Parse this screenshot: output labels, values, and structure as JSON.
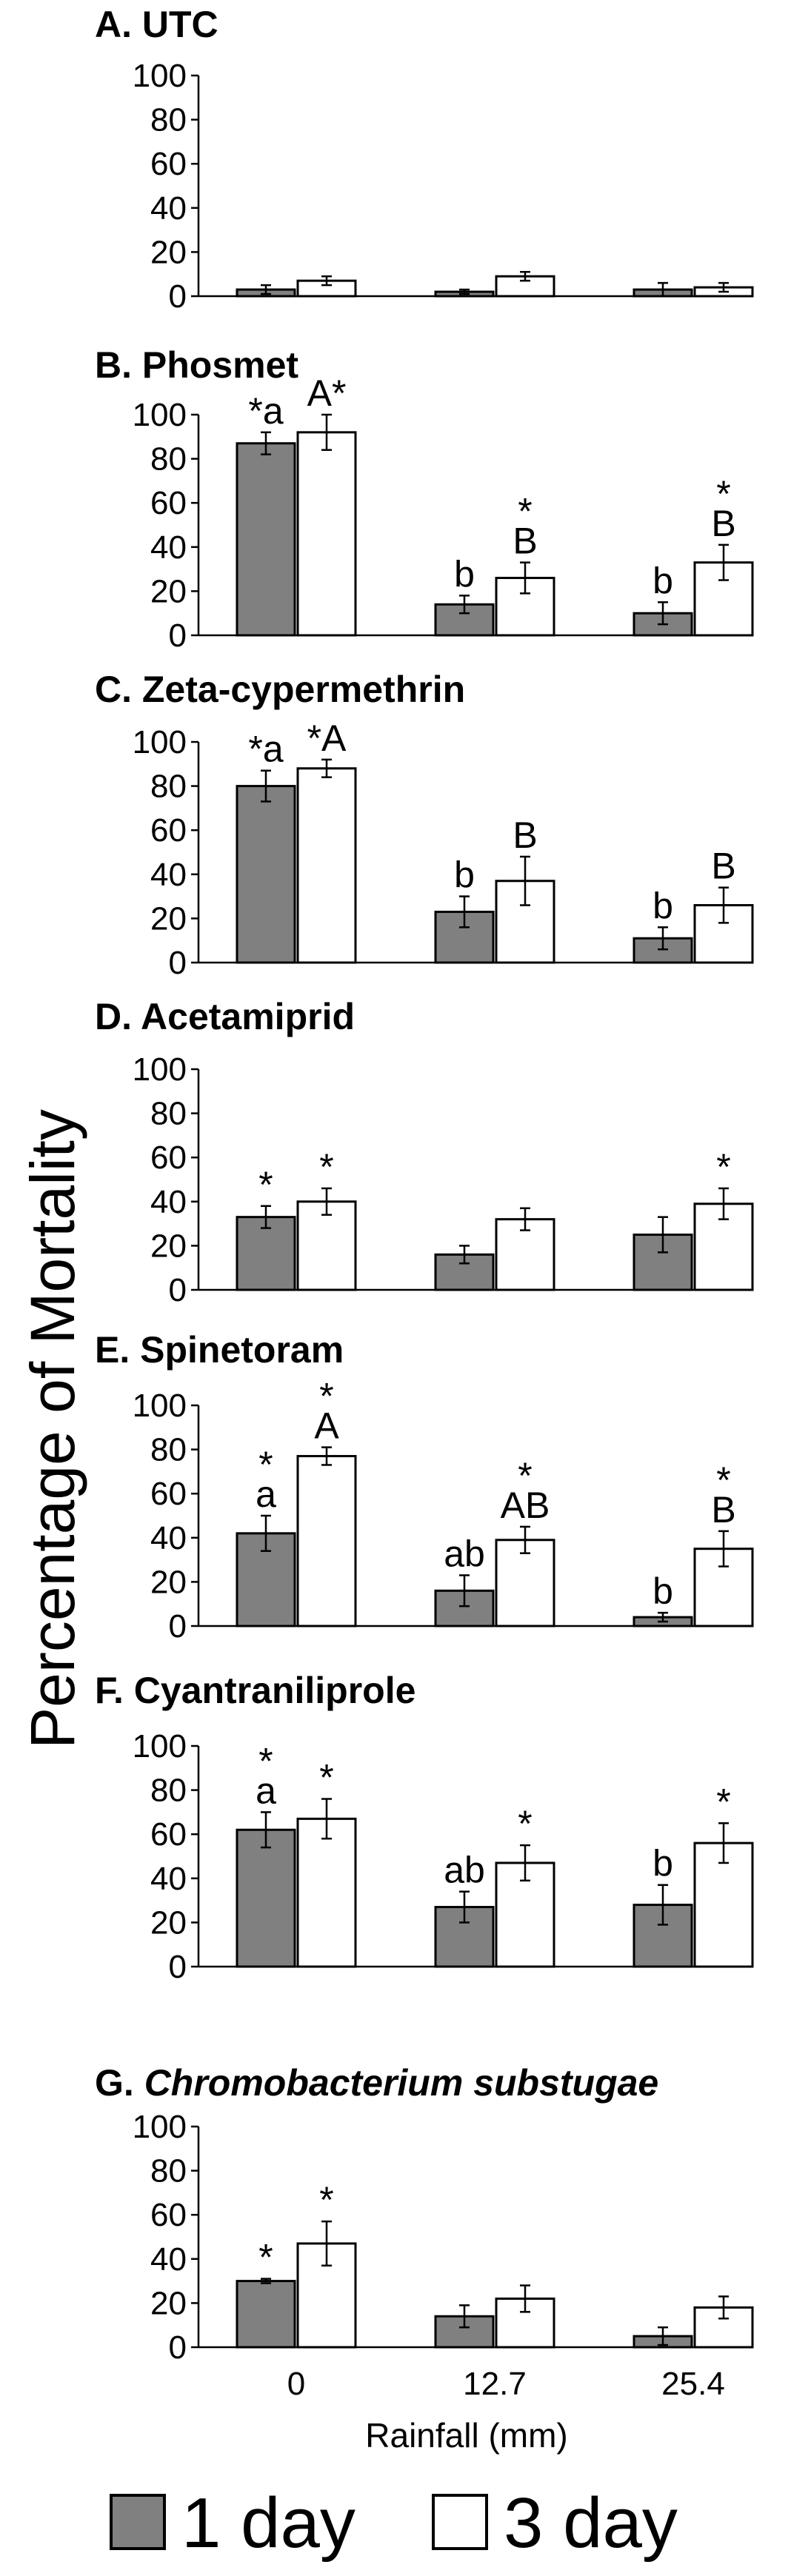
{
  "chart_data": [
    {
      "type": "bar",
      "title": "A. UTC",
      "categories": [
        "0",
        "12.7",
        "25.4"
      ],
      "ylim": [
        0,
        100
      ],
      "yticks": [
        "0",
        "20",
        "40",
        "60",
        "80",
        "100"
      ],
      "series": [
        {
          "name": "1 day",
          "values": [
            3,
            2,
            3
          ],
          "errors": [
            2,
            1,
            3
          ]
        },
        {
          "name": "3 day",
          "values": [
            7,
            9,
            4
          ],
          "errors": [
            2,
            2,
            2
          ]
        }
      ],
      "labels": [
        {
          "series": 0,
          "cat": 0,
          "text": ""
        },
        {
          "series": 1,
          "cat": 0,
          "text": ""
        },
        {
          "series": 0,
          "cat": 1,
          "text": ""
        },
        {
          "series": 1,
          "cat": 1,
          "text": ""
        },
        {
          "series": 0,
          "cat": 2,
          "text": ""
        },
        {
          "series": 1,
          "cat": 2,
          "text": ""
        }
      ]
    },
    {
      "type": "bar",
      "title": "B. Phosmet",
      "categories": [
        "0",
        "12.7",
        "25.4"
      ],
      "ylim": [
        0,
        100
      ],
      "yticks": [
        "0",
        "20",
        "40",
        "60",
        "80",
        "100"
      ],
      "series": [
        {
          "name": "1 day",
          "values": [
            87,
            14,
            10
          ],
          "errors": [
            5,
            4,
            5
          ]
        },
        {
          "name": "3 day",
          "values": [
            92,
            26,
            33
          ],
          "errors": [
            8,
            7,
            8
          ]
        }
      ],
      "labels": [
        {
          "series": 0,
          "cat": 0,
          "text": "*a"
        },
        {
          "series": 1,
          "cat": 0,
          "text": "A*"
        },
        {
          "series": 0,
          "cat": 1,
          "text": "b"
        },
        {
          "series": 1,
          "cat": 1,
          "text": "*"
        },
        {
          "series": 1,
          "cat": 1,
          "text": "B"
        },
        {
          "series": 0,
          "cat": 2,
          "text": "b"
        },
        {
          "series": 1,
          "cat": 2,
          "text": "*"
        },
        {
          "series": 1,
          "cat": 2,
          "text": "B"
        }
      ]
    },
    {
      "type": "bar",
      "title": "C. Zeta-cypermethrin",
      "categories": [
        "0",
        "12.7",
        "25.4"
      ],
      "ylim": [
        0,
        100
      ],
      "yticks": [
        "0",
        "20",
        "40",
        "60",
        "80",
        "100"
      ],
      "series": [
        {
          "name": "1 day",
          "values": [
            80,
            23,
            11
          ],
          "errors": [
            7,
            7,
            5
          ]
        },
        {
          "name": "3 day",
          "values": [
            88,
            37,
            26
          ],
          "errors": [
            4,
            11,
            8
          ]
        }
      ],
      "labels": [
        {
          "series": 0,
          "cat": 0,
          "text": "*a"
        },
        {
          "series": 1,
          "cat": 0,
          "text": "*A"
        },
        {
          "series": 0,
          "cat": 1,
          "text": "b"
        },
        {
          "series": 1,
          "cat": 1,
          "text": "B"
        },
        {
          "series": 0,
          "cat": 2,
          "text": "b"
        },
        {
          "series": 1,
          "cat": 2,
          "text": "B"
        }
      ]
    },
    {
      "type": "bar",
      "title": "D. Acetamiprid",
      "categories": [
        "0",
        "12.7",
        "25.4"
      ],
      "ylim": [
        0,
        100
      ],
      "yticks": [
        "0",
        "20",
        "40",
        "60",
        "80",
        "100"
      ],
      "series": [
        {
          "name": "1 day",
          "values": [
            33,
            16,
            25
          ],
          "errors": [
            5,
            4,
            8
          ]
        },
        {
          "name": "3 day",
          "values": [
            40,
            32,
            39
          ],
          "errors": [
            6,
            5,
            7
          ]
        }
      ],
      "labels": [
        {
          "series": 0,
          "cat": 0,
          "text": "*"
        },
        {
          "series": 1,
          "cat": 0,
          "text": "*"
        },
        {
          "series": 1,
          "cat": 2,
          "text": "*"
        }
      ]
    },
    {
      "type": "bar",
      "title": "E. Spinetoram",
      "categories": [
        "0",
        "12.7",
        "25.4"
      ],
      "ylim": [
        0,
        100
      ],
      "yticks": [
        "0",
        "20",
        "40",
        "60",
        "80",
        "100"
      ],
      "series": [
        {
          "name": "1 day",
          "values": [
            42,
            16,
            4
          ],
          "errors": [
            8,
            7,
            2
          ]
        },
        {
          "name": "3 day",
          "values": [
            77,
            39,
            35
          ],
          "errors": [
            4,
            6,
            8
          ]
        }
      ],
      "labels": [
        {
          "series": 0,
          "cat": 0,
          "text": "*"
        },
        {
          "series": 0,
          "cat": 0,
          "text": "a"
        },
        {
          "series": 1,
          "cat": 0,
          "text": "*"
        },
        {
          "series": 1,
          "cat": 0,
          "text": "A"
        },
        {
          "series": 0,
          "cat": 1,
          "text": "ab"
        },
        {
          "series": 1,
          "cat": 1,
          "text": "*"
        },
        {
          "series": 1,
          "cat": 1,
          "text": "AB"
        },
        {
          "series": 0,
          "cat": 2,
          "text": "b"
        },
        {
          "series": 1,
          "cat": 2,
          "text": "*"
        },
        {
          "series": 1,
          "cat": 2,
          "text": "B"
        }
      ]
    },
    {
      "type": "bar",
      "title": "F. Cyantraniliprole",
      "categories": [
        "0",
        "12.7",
        "25.4"
      ],
      "ylim": [
        0,
        100
      ],
      "yticks": [
        "0",
        "20",
        "40",
        "60",
        "80",
        "100"
      ],
      "series": [
        {
          "name": "1 day",
          "values": [
            62,
            27,
            28
          ],
          "errors": [
            8,
            7,
            9
          ]
        },
        {
          "name": "3 day",
          "values": [
            67,
            47,
            56
          ],
          "errors": [
            9,
            8,
            9
          ]
        }
      ],
      "labels": [
        {
          "series": 0,
          "cat": 0,
          "text": "*"
        },
        {
          "series": 0,
          "cat": 0,
          "text": "a"
        },
        {
          "series": 1,
          "cat": 0,
          "text": "*"
        },
        {
          "series": 0,
          "cat": 1,
          "text": "ab"
        },
        {
          "series": 1,
          "cat": 1,
          "text": "*"
        },
        {
          "series": 0,
          "cat": 2,
          "text": "b"
        },
        {
          "series": 1,
          "cat": 2,
          "text": "*"
        }
      ]
    },
    {
      "type": "bar",
      "title": "G. Chromobacterium substugae",
      "title_prefix": "G. ",
      "title_italic": "Chromobacterium substugae",
      "categories": [
        "0",
        "12.7",
        "25.4"
      ],
      "ylim": [
        0,
        100
      ],
      "yticks": [
        "0",
        "20",
        "40",
        "60",
        "80",
        "100"
      ],
      "series": [
        {
          "name": "1 day",
          "values": [
            30,
            14,
            5
          ],
          "errors": [
            1,
            5,
            4
          ]
        },
        {
          "name": "3 day",
          "values": [
            47,
            22,
            18
          ],
          "errors": [
            10,
            6,
            5
          ]
        }
      ],
      "labels": [
        {
          "series": 0,
          "cat": 0,
          "text": "*"
        },
        {
          "series": 1,
          "cat": 0,
          "text": "*"
        }
      ]
    }
  ],
  "ylabel": "Percentage of Mortality",
  "xlabel": "Rainfall (mm)",
  "legend": [
    {
      "name": "1 day",
      "color": "#808080"
    },
    {
      "name": "3 day",
      "color": "#ffffff"
    }
  ],
  "colors": {
    "series0": "#808080",
    "series1": "#ffffff",
    "stroke": "#000000"
  }
}
